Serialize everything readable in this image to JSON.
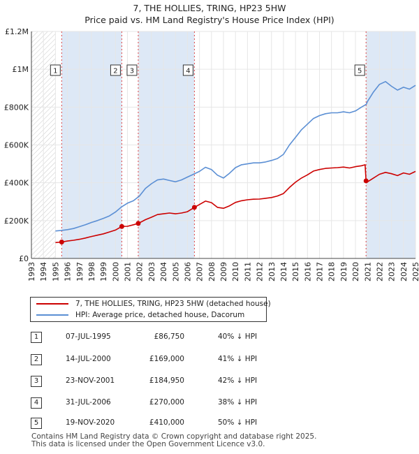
{
  "title": "7, THE HOLLIES, TRING, HP23 5HW",
  "subtitle": "Price paid vs. HM Land Registry's House Price Index (HPI)",
  "colors": {
    "price": "#cc0000",
    "hpi": "#5b8fd4",
    "shade": "#dde8f6",
    "grid": "#e6e6e6"
  },
  "legend": {
    "price_label": "7, THE HOLLIES, TRING, HP23 5HW (detached house)",
    "hpi_label": "HPI: Average price, detached house, Dacorum"
  },
  "transactions": [
    {
      "num": "1",
      "date": "07-JUL-1995",
      "price": "£86,750",
      "hpi": "40% ↓ HPI"
    },
    {
      "num": "2",
      "date": "14-JUL-2000",
      "price": "£169,000",
      "hpi": "41% ↓ HPI"
    },
    {
      "num": "3",
      "date": "23-NOV-2001",
      "price": "£184,950",
      "hpi": "42% ↓ HPI"
    },
    {
      "num": "4",
      "date": "31-JUL-2006",
      "price": "£270,000",
      "hpi": "38% ↓ HPI"
    },
    {
      "num": "5",
      "date": "19-NOV-2020",
      "price": "£410,000",
      "hpi": "50% ↓ HPI"
    }
  ],
  "footer": {
    "line1": "Contains HM Land Registry data © Crown copyright and database right 2025.",
    "line2": "This data is licensed under the Open Government Licence v3.0."
  },
  "chart_data": {
    "type": "line",
    "xlim": [
      1993,
      2025
    ],
    "ylim": [
      0,
      1200000
    ],
    "yticks": [
      0,
      200000,
      400000,
      600000,
      800000,
      1000000,
      1200000
    ],
    "ytick_labels": [
      "£0",
      "£200K",
      "£400K",
      "£600K",
      "£800K",
      "£1M",
      "£1.2M"
    ],
    "xticks": [
      1993,
      1994,
      1995,
      1996,
      1997,
      1998,
      1999,
      2000,
      2001,
      2002,
      2003,
      2004,
      2005,
      2006,
      2007,
      2008,
      2009,
      2010,
      2011,
      2012,
      2013,
      2014,
      2015,
      2016,
      2017,
      2018,
      2019,
      2020,
      2021,
      2022,
      2023,
      2024,
      2025
    ],
    "data_start": 1995.0,
    "series": [
      {
        "name": "HPI: Average price, detached house, Dacorum",
        "x": [
          1995.0,
          1995.5,
          1996.0,
          1996.5,
          1997.0,
          1997.5,
          1998.0,
          1998.5,
          1999.0,
          1999.5,
          2000.0,
          2000.5,
          2001.0,
          2001.5,
          2002.0,
          2002.5,
          2003.0,
          2003.5,
          2004.0,
          2004.5,
          2005.0,
          2005.5,
          2006.0,
          2006.5,
          2007.0,
          2007.5,
          2008.0,
          2008.5,
          2009.0,
          2009.5,
          2010.0,
          2010.5,
          2011.0,
          2011.5,
          2012.0,
          2012.5,
          2013.0,
          2013.5,
          2014.0,
          2014.5,
          2015.0,
          2015.5,
          2016.0,
          2016.5,
          2017.0,
          2017.5,
          2018.0,
          2018.5,
          2019.0,
          2019.5,
          2020.0,
          2020.5,
          2020.9,
          2021.0,
          2021.5,
          2022.0,
          2022.5,
          2023.0,
          2023.5,
          2024.0,
          2024.5,
          2025.0
        ],
        "values": [
          145000,
          148000,
          152000,
          158000,
          168000,
          178000,
          190000,
          200000,
          212000,
          225000,
          245000,
          272000,
          292000,
          305000,
          330000,
          370000,
          395000,
          415000,
          420000,
          412000,
          405000,
          415000,
          430000,
          445000,
          460000,
          482000,
          470000,
          440000,
          425000,
          450000,
          480000,
          495000,
          500000,
          505000,
          505000,
          510000,
          518000,
          528000,
          550000,
          600000,
          640000,
          680000,
          710000,
          740000,
          755000,
          765000,
          770000,
          770000,
          775000,
          770000,
          780000,
          800000,
          815000,
          830000,
          880000,
          920000,
          935000,
          910000,
          890000,
          905000,
          895000,
          915000
        ]
      },
      {
        "name": "7, THE HOLLIES, TRING, HP23 5HW (detached house)",
        "x": [
          1995.0,
          1995.52,
          1996.0,
          1996.5,
          1997.0,
          1997.5,
          1998.0,
          1998.5,
          1999.0,
          1999.5,
          2000.0,
          2000.53,
          2001.0,
          2001.5,
          2001.9,
          2002.5,
          2003.0,
          2003.5,
          2004.0,
          2004.5,
          2005.0,
          2005.5,
          2006.0,
          2006.58,
          2007.0,
          2007.5,
          2008.0,
          2008.5,
          2009.0,
          2009.5,
          2010.0,
          2010.5,
          2011.0,
          2011.5,
          2012.0,
          2012.5,
          2013.0,
          2013.5,
          2014.0,
          2014.5,
          2015.0,
          2015.5,
          2016.0,
          2016.5,
          2017.0,
          2017.5,
          2018.0,
          2018.5,
          2019.0,
          2019.5,
          2020.0,
          2020.5,
          2020.8,
          2020.88,
          2021.0,
          2021.5,
          2022.0,
          2022.5,
          2023.0,
          2023.5,
          2024.0,
          2024.5,
          2025.0
        ],
        "values": [
          84000,
          86750,
          92000,
          96000,
          101000,
          108000,
          116000,
          123000,
          130000,
          140000,
          150000,
          169000,
          170000,
          178000,
          184950,
          205000,
          218000,
          232000,
          236000,
          240000,
          236000,
          240000,
          247000,
          270000,
          285000,
          303000,
          295000,
          270000,
          265000,
          278000,
          296000,
          305000,
          310000,
          313000,
          314000,
          318000,
          322000,
          330000,
          343000,
          375000,
          403000,
          425000,
          442000,
          462000,
          470000,
          476000,
          478000,
          480000,
          483000,
          478000,
          485000,
          490000,
          495000,
          410000,
          405000,
          425000,
          445000,
          455000,
          448000,
          438000,
          452000,
          445000,
          460000
        ]
      }
    ],
    "sales": [
      {
        "num": "1",
        "x": 1995.52,
        "value": 86750
      },
      {
        "num": "2",
        "x": 2000.53,
        "value": 169000
      },
      {
        "num": "3",
        "x": 2001.9,
        "value": 184950
      },
      {
        "num": "4",
        "x": 2006.58,
        "value": 270000
      },
      {
        "num": "5",
        "x": 2020.88,
        "value": 410000
      }
    ]
  }
}
